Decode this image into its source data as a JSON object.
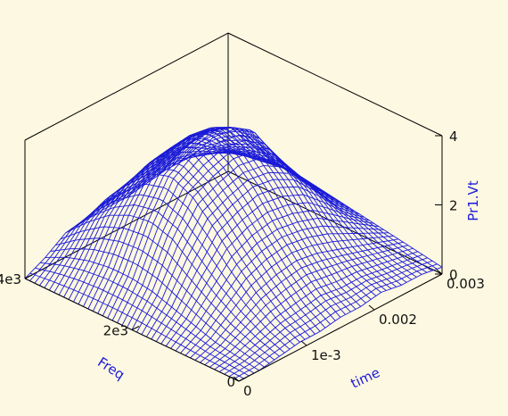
{
  "colors": {
    "background": "#fdf8e1",
    "mesh": "#1a1ad8",
    "frame": "#000000",
    "axis_title": "#1a1ad8"
  },
  "chart_data": {
    "type": "surface-3d-wireframe",
    "title": "",
    "x_axis": {
      "label": "Freq",
      "range": [
        0,
        4000
      ],
      "ticks": [
        {
          "value": 0,
          "label": "0"
        },
        {
          "value": 2000,
          "label": "2e3"
        },
        {
          "value": 4000,
          "label": "4e3"
        }
      ]
    },
    "y_axis": {
      "label": "time",
      "range": [
        0,
        0.003
      ],
      "ticks": [
        {
          "value": 0,
          "label": "0"
        },
        {
          "value": 0.001,
          "label": "1e-3"
        },
        {
          "value": 0.002,
          "label": "0.002"
        },
        {
          "value": 0.003,
          "label": "0.003"
        }
      ]
    },
    "z_axis": {
      "label": "Pr1.Vt",
      "range": [
        0,
        4
      ],
      "ticks": [
        {
          "value": 0,
          "label": "0"
        },
        {
          "value": 2,
          "label": "2"
        },
        {
          "value": 4,
          "label": "4"
        }
      ]
    },
    "grid": false,
    "legend": "none",
    "surface": {
      "freq": [
        0,
        400,
        800,
        1200,
        1600,
        2000,
        2400,
        2800,
        3200,
        3600,
        4000
      ],
      "time": [
        0,
        0.0003,
        0.0006,
        0.0009,
        0.0012,
        0.0015,
        0.0018,
        0.0021,
        0.0024,
        0.0027,
        0.003
      ],
      "values": [
        [
          0.0,
          0.0,
          0.1,
          0.2,
          0.2,
          0.3,
          0.3,
          0.4,
          0.3,
          0.3,
          0.2
        ],
        [
          0.0,
          0.1,
          0.3,
          0.5,
          0.6,
          0.7,
          0.6,
          0.6,
          0.5,
          0.4,
          0.3
        ],
        [
          0.0,
          0.2,
          0.6,
          1.0,
          1.2,
          1.3,
          1.2,
          1.0,
          0.8,
          0.6,
          0.4
        ],
        [
          0.0,
          0.4,
          1.0,
          1.6,
          1.9,
          2.0,
          1.9,
          1.7,
          1.3,
          0.9,
          0.5
        ],
        [
          0.0,
          0.6,
          1.5,
          2.3,
          2.6,
          2.8,
          2.7,
          2.4,
          1.8,
          1.1,
          0.6
        ],
        [
          0.0,
          0.8,
          2.0,
          2.9,
          3.2,
          3.4,
          3.3,
          2.9,
          2.1,
          1.3,
          0.7
        ],
        [
          0.0,
          0.9,
          2.2,
          3.2,
          3.6,
          3.8,
          3.7,
          3.3,
          2.3,
          1.4,
          0.8
        ],
        [
          0.0,
          0.9,
          2.1,
          3.0,
          3.3,
          3.5,
          3.4,
          3.1,
          2.3,
          1.5,
          0.9
        ],
        [
          0.0,
          0.8,
          1.8,
          2.4,
          2.7,
          2.8,
          2.8,
          2.7,
          2.0,
          1.4,
          0.8
        ],
        [
          0.0,
          0.6,
          1.3,
          1.7,
          1.8,
          1.8,
          1.9,
          2.0,
          1.6,
          1.2,
          0.7
        ],
        [
          0.0,
          0.3,
          0.7,
          0.8,
          0.8,
          0.8,
          0.9,
          1.0,
          1.0,
          0.8,
          0.6
        ]
      ]
    }
  }
}
